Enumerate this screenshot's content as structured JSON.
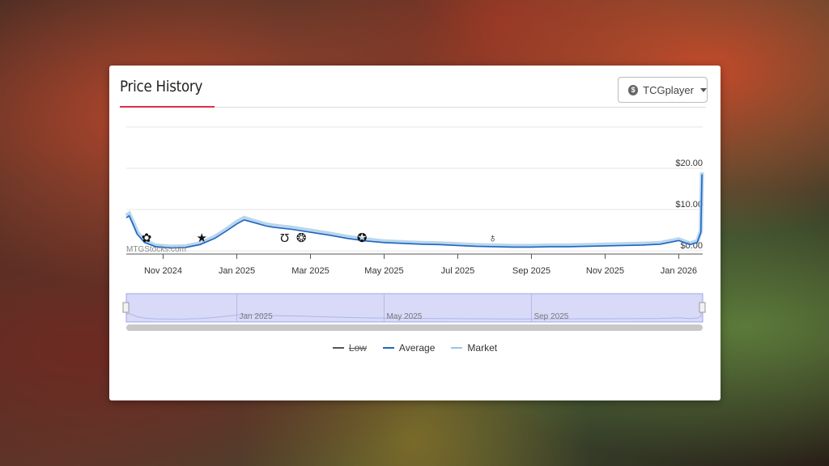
{
  "card": {
    "title": "Price History",
    "source_label": "TCGplayer",
    "watermark": "MTGStocks.com"
  },
  "colors": {
    "accent": "#d9304a",
    "average": "#1f66c1",
    "market": "#9bc4e6",
    "low": "#555555",
    "navigator_fill": "#c7cbf5"
  },
  "chart_data": {
    "type": "line",
    "title": "",
    "ylabel": "",
    "ylim": [
      0,
      30
    ],
    "y_ticks": [
      "$0.00",
      "$10.00",
      "$20.00"
    ],
    "y_tick_values": [
      0,
      10,
      20
    ],
    "x_tick_labels": [
      "Nov 2024",
      "Jan 2025",
      "Mar 2025",
      "May 2025",
      "Jul 2025",
      "Sep 2025",
      "Nov 2025",
      "Jan 2026"
    ],
    "x_tick_months": [
      1,
      3,
      5,
      7,
      9,
      11,
      13,
      15
    ],
    "x_range_months": [
      0.0,
      15.65
    ],
    "series": [
      {
        "name": "Average",
        "visible": true,
        "months": [
          0.0,
          0.08,
          0.18,
          0.3,
          0.5,
          0.8,
          1.2,
          1.6,
          2.0,
          2.4,
          2.7,
          3.0,
          3.2,
          3.4,
          3.6,
          3.8,
          4.0,
          4.5,
          5.0,
          5.5,
          6.0,
          6.5,
          7.0,
          7.5,
          8.0,
          8.5,
          9.0,
          9.5,
          10.0,
          10.5,
          11.0,
          11.5,
          12.0,
          12.5,
          13.0,
          13.5,
          14.0,
          14.5,
          15.0,
          15.3,
          15.5,
          15.6,
          15.63
        ],
        "values": [
          8.0,
          8.5,
          6.5,
          4.0,
          2.0,
          1.0,
          0.7,
          0.8,
          1.5,
          3.0,
          4.7,
          6.5,
          7.5,
          7.0,
          6.5,
          6.0,
          5.7,
          5.2,
          4.5,
          3.8,
          3.0,
          2.4,
          2.0,
          1.8,
          1.6,
          1.5,
          1.3,
          1.1,
          1.0,
          0.9,
          0.9,
          1.0,
          1.0,
          1.1,
          1.2,
          1.3,
          1.4,
          1.6,
          2.5,
          1.5,
          2.0,
          4.5,
          18.5
        ]
      },
      {
        "name": "Market",
        "visible": true,
        "months": [
          0.0,
          0.08,
          0.18,
          0.3,
          0.5,
          0.8,
          1.2,
          1.6,
          2.0,
          2.4,
          2.7,
          3.0,
          3.2,
          3.4,
          3.6,
          3.8,
          4.0,
          4.5,
          5.0,
          5.5,
          6.0,
          6.5,
          7.0,
          7.5,
          8.0,
          8.5,
          9.0,
          9.5,
          10.0,
          10.5,
          11.0,
          11.5,
          12.0,
          12.5,
          13.0,
          13.5,
          14.0,
          14.5,
          15.0,
          15.3,
          15.5,
          15.6,
          15.63
        ],
        "values": [
          8.5,
          9.0,
          7.0,
          4.5,
          2.4,
          1.3,
          1.0,
          1.1,
          1.8,
          3.4,
          5.1,
          7.0,
          8.0,
          7.4,
          6.9,
          6.4,
          6.1,
          5.6,
          4.9,
          4.2,
          3.4,
          2.8,
          2.3,
          2.1,
          1.9,
          1.8,
          1.6,
          1.4,
          1.3,
          1.2,
          1.2,
          1.3,
          1.3,
          1.4,
          1.5,
          1.6,
          1.7,
          1.9,
          2.8,
          1.8,
          2.3,
          4.8,
          19.0
        ]
      },
      {
        "name": "Low",
        "visible": false,
        "months": [],
        "values": []
      }
    ],
    "set_markers": [
      {
        "name": "butterfly-icon",
        "month": 0.55,
        "glyph": "✿"
      },
      {
        "name": "star-icon",
        "month": 2.05,
        "glyph": "★"
      },
      {
        "name": "horseshoe-icon",
        "month": 4.3,
        "glyph": "Ʊ"
      },
      {
        "name": "turtle-icon",
        "month": 4.75,
        "glyph": "❂"
      },
      {
        "name": "gear-set-icon",
        "month": 6.4,
        "glyph": "✪"
      },
      {
        "name": "planet-icon",
        "month": 9.95,
        "glyph": "♁"
      }
    ],
    "navigator": {
      "labels": [
        "Jan 2025",
        "May 2025",
        "Sep 2025"
      ],
      "label_months": [
        3,
        7,
        11
      ]
    },
    "legend": [
      "Low",
      "Average",
      "Market"
    ]
  }
}
